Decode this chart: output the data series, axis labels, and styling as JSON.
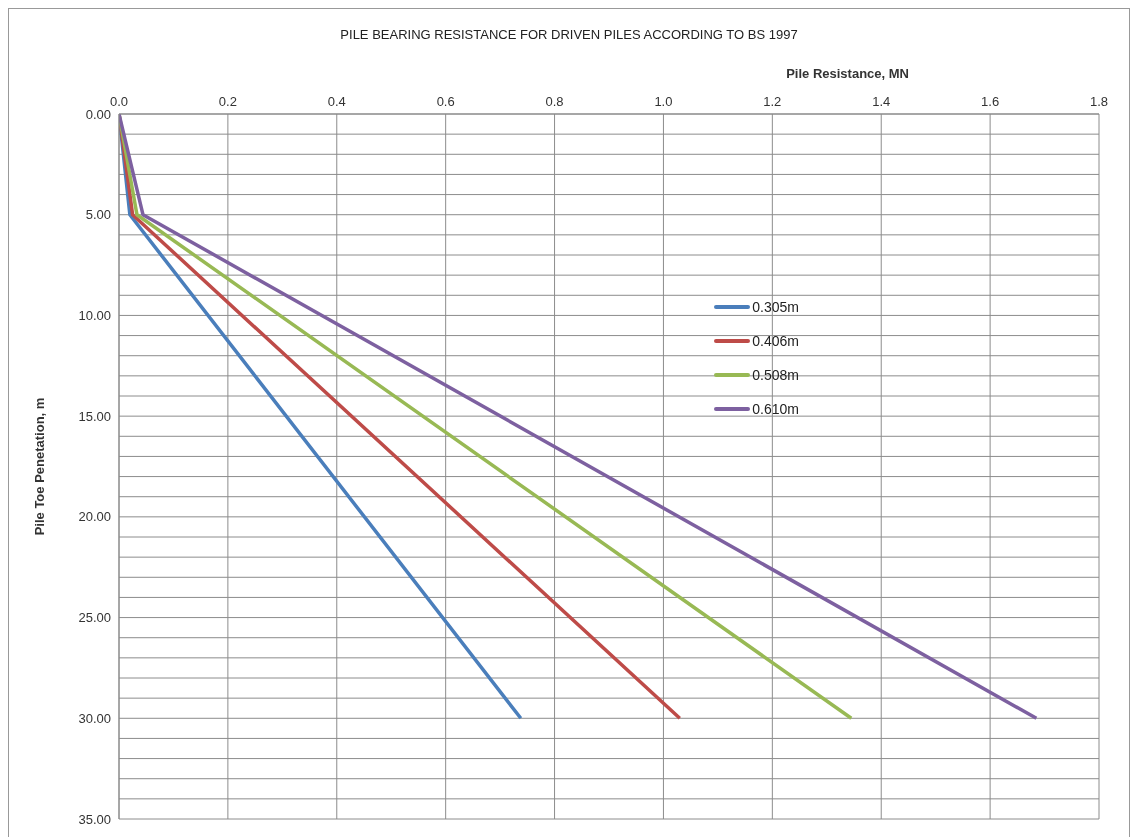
{
  "chart_data": {
    "type": "line",
    "title": "PILE  BEARING RESISTANCE FOR  DRIVEN PILES ACCORDING TO BS 1997",
    "xlabel": "Pile Resistance, MN",
    "ylabel": "Pile Toe Penetation, m",
    "xlim": [
      0,
      1.8
    ],
    "xticks": [
      {
        "value": 0,
        "label": "0.0"
      },
      0.2,
      0.4,
      0.6,
      0.8,
      {
        "value": 1,
        "label": "1.0"
      },
      1.2,
      1.4,
      1.6,
      1.8
    ],
    "ylim": [
      35,
      0
    ],
    "yticks": [
      {
        "value": 0,
        "label": "0.00"
      },
      {
        "value": 1,
        "label": null
      },
      {
        "value": 2,
        "label": null
      },
      {
        "value": 3,
        "label": null
      },
      {
        "value": 4,
        "label": null
      },
      {
        "value": 5,
        "label": "5.00"
      },
      {
        "value": 6,
        "label": null
      },
      {
        "value": 7,
        "label": null
      },
      {
        "value": 8,
        "label": null
      },
      {
        "value": 9,
        "label": null
      },
      {
        "value": 10,
        "label": "10.00"
      },
      {
        "value": 11,
        "label": null
      },
      {
        "value": 12,
        "label": null
      },
      {
        "value": 13,
        "label": null
      },
      {
        "value": 14,
        "label": null
      },
      {
        "value": 15,
        "label": "15.00"
      },
      {
        "value": 16,
        "label": null
      },
      {
        "value": 17,
        "label": null
      },
      {
        "value": 18,
        "label": null
      },
      {
        "value": 19,
        "label": null
      },
      {
        "value": 20,
        "label": "20.00"
      },
      {
        "value": 21,
        "label": null
      },
      {
        "value": 22,
        "label": null
      },
      {
        "value": 23,
        "label": null
      },
      {
        "value": 24,
        "label": null
      },
      {
        "value": 25,
        "label": "25.00"
      },
      {
        "value": 26,
        "label": null
      },
      {
        "value": 27,
        "label": null
      },
      {
        "value": 28,
        "label": null
      },
      {
        "value": 29,
        "label": null
      },
      {
        "value": 30,
        "label": "30.00"
      },
      {
        "value": 31,
        "label": null
      },
      {
        "value": 32,
        "label": null
      },
      {
        "value": 33,
        "label": null
      },
      {
        "value": 34,
        "label": null
      },
      {
        "value": 35,
        "label": "35.00"
      }
    ],
    "grid": true,
    "legend": "right",
    "marker": "none",
    "line_style": "solid",
    "series": [
      {
        "name": "0.305m",
        "color": "#4a7ebb",
        "x": [
          0,
          0.02,
          0.738
        ],
        "values": [
          0,
          5,
          30
        ]
      },
      {
        "name": "0.406m",
        "color": "#be4b48",
        "x": [
          0,
          0.025,
          1.03
        ],
        "values": [
          0,
          5,
          30
        ]
      },
      {
        "name": "0.508m",
        "color": "#98b954",
        "x": [
          0,
          0.033,
          1.345
        ],
        "values": [
          0,
          5,
          30
        ]
      },
      {
        "name": "0.610m",
        "color": "#7d60a0",
        "x": [
          0,
          0.044,
          1.685
        ],
        "values": [
          0,
          5,
          30
        ]
      }
    ]
  }
}
